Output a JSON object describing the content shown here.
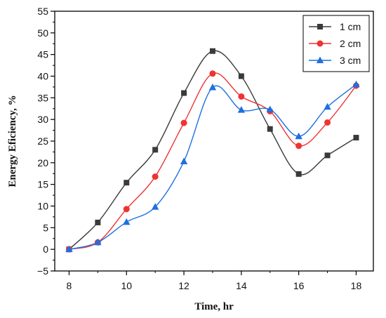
{
  "chart_data": {
    "type": "line",
    "title": "",
    "xlabel": "Time, hr",
    "ylabel": "Energy Eficiency, %",
    "xlim": [
      7.5,
      18.6
    ],
    "ylim": [
      -5,
      55
    ],
    "xticks": [
      8,
      10,
      12,
      14,
      16,
      18
    ],
    "yticks": [
      -5,
      0,
      5,
      10,
      15,
      20,
      25,
      30,
      35,
      40,
      45,
      50,
      55
    ],
    "x": [
      8,
      9,
      10,
      11,
      12,
      13,
      14,
      15,
      16,
      17,
      18
    ],
    "legend_position": "top-right",
    "grid": false,
    "series": [
      {
        "name": "1 cm",
        "color": "#3a3a3a",
        "marker": "square",
        "values": [
          0,
          6.2,
          15.4,
          23.0,
          36.1,
          45.8,
          40.0,
          27.8,
          17.4,
          21.7,
          25.8
        ]
      },
      {
        "name": "2 cm",
        "color": "#ee3333",
        "marker": "circle",
        "values": [
          0,
          1.6,
          9.3,
          16.8,
          29.2,
          40.6,
          35.3,
          31.9,
          23.9,
          29.3,
          37.8
        ]
      },
      {
        "name": "3 cm",
        "color": "#1e6fe0",
        "marker": "triangle",
        "values": [
          0,
          1.6,
          6.3,
          9.8,
          20.3,
          37.4,
          32.2,
          32.3,
          26.1,
          32.9,
          38.1
        ]
      }
    ]
  }
}
